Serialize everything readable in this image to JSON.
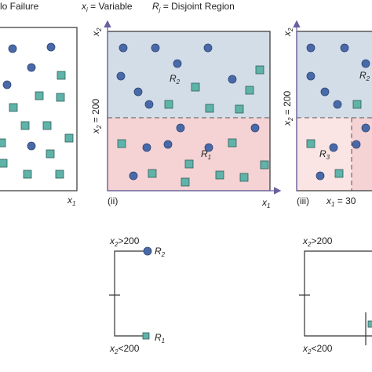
{
  "legend": {
    "failure": "lo Failure",
    "variable_sym": "x",
    "variable_sub": "i",
    "variable_text": " = Variable",
    "region_sym": "R",
    "region_sub": "j",
    "region_text": " = Disjoint Region"
  },
  "axes": {
    "x_sym": "x",
    "x_sub": "1",
    "y_sym": "x",
    "y_sub": "2"
  },
  "panels": {
    "ii_label": "(ii)",
    "iii_label": "(iii)",
    "split_y": "x",
    "split_y_sub": "2",
    "split_y_val": " = 200",
    "split_x_sym": "x",
    "split_x_sub": "1",
    "split_x_val": " = 30",
    "region_R1": "R",
    "region_R1_sub": "1",
    "region_R2": "R",
    "region_R2_sub": "2",
    "region_R3": "R",
    "region_R3_sub": "3"
  },
  "tree": {
    "gt_sym": "x",
    "gt_sub": "2",
    "gt_val": ">200",
    "lt_sym": "x",
    "lt_sub": "2",
    "lt_val": "<200",
    "leaf_top": "R",
    "leaf_top_sub": "2",
    "leaf_bottom": "R",
    "leaf_bottom_sub": "1"
  },
  "colors": {
    "circle": "#4a69a8",
    "square": "#5fb3a8",
    "region_upper": "#d3dde8",
    "region_lower": "#f5d2d4",
    "region_r3": "#fbe4e4",
    "axis": "#6b5fa0"
  }
}
